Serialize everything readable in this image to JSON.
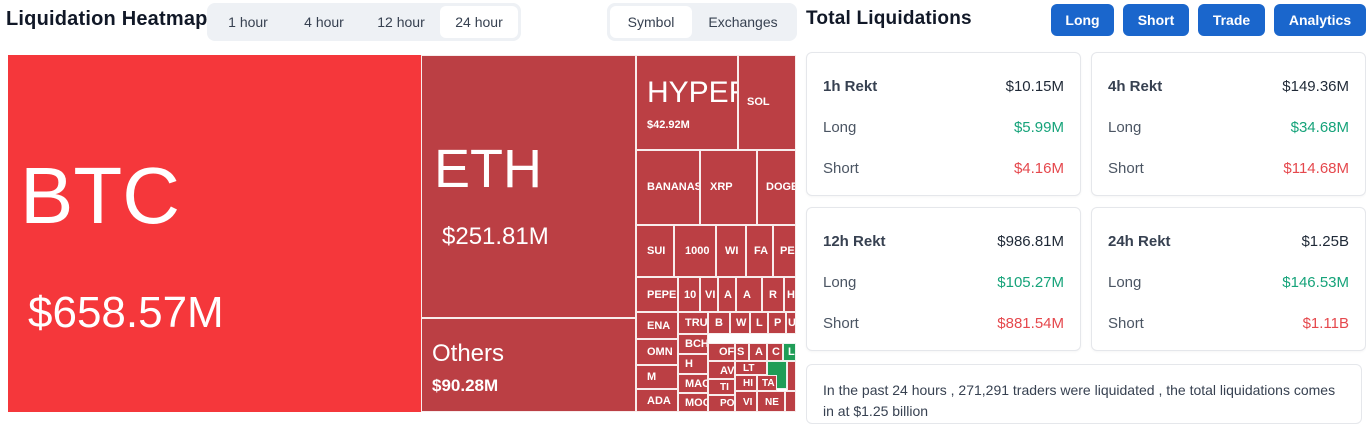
{
  "header": {
    "title": "Liquidation Heatmap",
    "time_tabs": [
      "1 hour",
      "4 hour",
      "12 hour",
      "24 hour"
    ],
    "active_time_tab": "24 hour",
    "view_tabs": [
      "Symbol",
      "Exchanges"
    ],
    "active_view_tab": "Symbol"
  },
  "right_header": {
    "title": "Total Liquidations",
    "buttons": [
      "Long",
      "Short",
      "Trade",
      "Analytics"
    ]
  },
  "colors": {
    "accent": "#1a66cc",
    "heat_red": "#bb3f44",
    "heat_bright": "#f5373b",
    "heat_green": "#1f9d57",
    "positive": "#16a37a",
    "negative": "#e5484d"
  },
  "heatmap": {
    "btc": {
      "symbol": "BTC",
      "value": "$658.57M"
    },
    "eth": {
      "symbol": "ETH",
      "value": "$251.81M"
    },
    "others": {
      "symbol": "Others",
      "value": "$90.28M"
    },
    "hyper": {
      "symbol": "HYPER",
      "value": "$42.92M"
    },
    "small": [
      "SOL",
      "BANANAS",
      "XRP",
      "DOGE",
      "SUI",
      "1000",
      "WI",
      "FA",
      "PE",
      "PEPE",
      "10",
      "VI",
      "A",
      "A",
      "R",
      "H",
      "ENA",
      "TRU",
      "B",
      "W",
      "L",
      "P",
      "U",
      "OMN",
      "BCH",
      "OF",
      "S",
      "A",
      "C",
      "L",
      "M",
      "H",
      "AV",
      "LT",
      "MAC",
      "TI",
      "HI",
      "ADA",
      "MOC",
      "PO",
      "VI",
      "NE",
      "TA"
    ]
  },
  "cards": [
    {
      "title": "1h Rekt",
      "total": "$10.15M",
      "long_label": "Long",
      "long": "$5.99M",
      "short_label": "Short",
      "short": "$4.16M"
    },
    {
      "title": "4h Rekt",
      "total": "$149.36M",
      "long_label": "Long",
      "long": "$34.68M",
      "short_label": "Short",
      "short": "$114.68M"
    },
    {
      "title": "12h Rekt",
      "total": "$986.81M",
      "long_label": "Long",
      "long": "$105.27M",
      "short_label": "Short",
      "short": "$881.54M"
    },
    {
      "title": "24h Rekt",
      "total": "$1.25B",
      "long_label": "Long",
      "long": "$146.53M",
      "short_label": "Short",
      "short": "$1.11B"
    }
  ],
  "summary": "In the past 24 hours , 271,291 traders were liquidated , the total liquidations comes in at $1.25 billion"
}
